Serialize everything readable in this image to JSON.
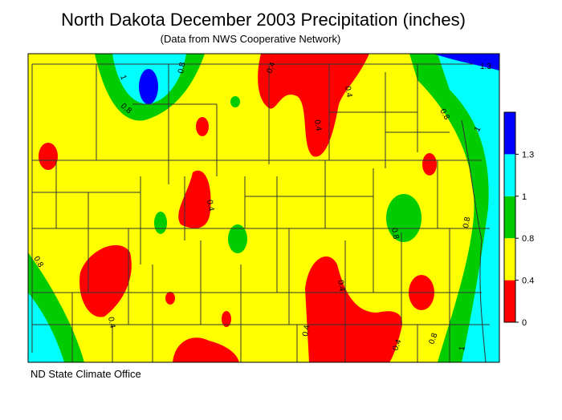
{
  "header": {
    "title": "North Dakota December 2003 Precipitation (inches)",
    "subtitle": "(Data from NWS Cooperative Network)"
  },
  "footer": {
    "credit": "ND State Climate Office"
  },
  "legend": {
    "breaks": [
      0,
      0.4,
      0.8,
      1,
      1.3
    ],
    "colors": [
      "#ff0000",
      "#ffff00",
      "#00cc00",
      "#00ffff",
      "#0000ff"
    ]
  },
  "contour_labels": [
    "1.3",
    "1",
    "0.8",
    "0.8",
    "0.4",
    "0.4",
    "0.4",
    "0.8",
    "0.8",
    "0.4",
    "0.4",
    "0.4",
    "0.4",
    "0.8",
    "1",
    "0.8",
    "1",
    "0.4",
    "0.8"
  ]
}
